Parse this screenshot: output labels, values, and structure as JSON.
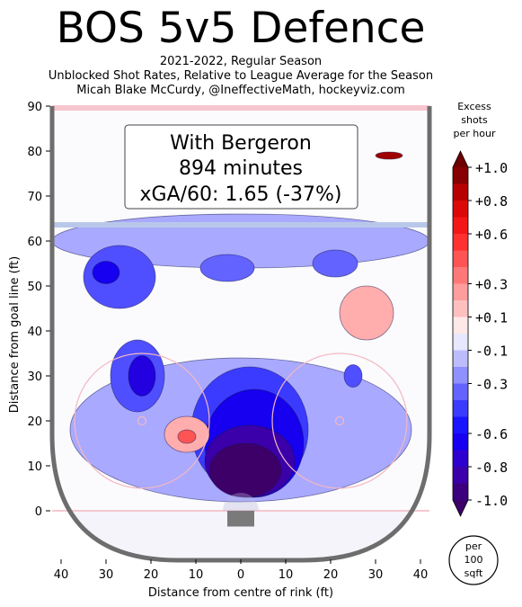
{
  "header": {
    "title": "BOS 5v5 Defence",
    "subtitle_lines": [
      "2021-2022, Regular Season",
      "Unblocked Shot Rates, Relative to League Average for the Season",
      "Micah Blake McCurdy, @IneffectiveMath, hockeyviz.com"
    ]
  },
  "chart_data": {
    "type": "heatmap",
    "title": "BOS 5v5 Defence",
    "xlabel": "Distance from centre of rink (ft)",
    "ylabel": "Distance from goal line (ft)",
    "xlim": [
      -42,
      42
    ],
    "ylim": [
      -11,
      90
    ],
    "x_ticks": [
      -40,
      -30,
      -20,
      -10,
      0,
      10,
      20,
      30,
      40
    ],
    "x_tick_labels": [
      "40",
      "30",
      "20",
      "10",
      "0",
      "10",
      "20",
      "30",
      "40"
    ],
    "y_ticks": [
      0,
      10,
      20,
      30,
      40,
      50,
      60,
      70,
      80,
      90
    ],
    "y_tick_labels": [
      "0",
      "10",
      "20",
      "30",
      "40",
      "50",
      "60",
      "70",
      "80",
      "90"
    ],
    "annotation": {
      "lines": [
        "With Bergeron",
        "894 minutes",
        "xGA/60: 1.65 (-37%)"
      ],
      "minutes": 894,
      "xga60": 1.65,
      "pct_vs_league": -37
    },
    "colorbar": {
      "title_lines": [
        "Excess",
        "shots",
        "per hour"
      ],
      "range": [
        -1.0,
        1.0
      ],
      "tick_values": [
        1.0,
        0.8,
        0.6,
        0.3,
        0.1,
        -0.1,
        -0.3,
        -0.6,
        -0.8,
        -1.0
      ],
      "tick_labels": [
        "+1.0",
        "+0.8",
        "+0.6",
        "+0.3",
        "+0.1",
        "-0.1",
        "-0.3",
        "-0.6",
        "-0.8",
        "-1.0"
      ]
    },
    "unit_badge_lines": [
      "per",
      "100",
      "sqft"
    ],
    "grid": false,
    "regions": [
      {
        "x": 0,
        "y": 60,
        "rx": 42,
        "ry": 6,
        "value": -0.2
      },
      {
        "x": 0,
        "y": 18,
        "rx": 38,
        "ry": 16,
        "value": -0.2
      },
      {
        "x": -27,
        "y": 52,
        "rx": 8,
        "ry": 7,
        "value": -0.4
      },
      {
        "x": -30,
        "y": 53,
        "rx": 3,
        "ry": 2.5,
        "value": -0.65
      },
      {
        "x": -3,
        "y": 54,
        "rx": 6,
        "ry": 3,
        "value": -0.35
      },
      {
        "x": 21,
        "y": 55,
        "rx": 5,
        "ry": 3,
        "value": -0.35
      },
      {
        "x": -23,
        "y": 30,
        "rx": 6,
        "ry": 8,
        "value": -0.4
      },
      {
        "x": -22,
        "y": 30,
        "rx": 3,
        "ry": 4.5,
        "value": -0.7
      },
      {
        "x": 25,
        "y": 30,
        "rx": 2,
        "ry": 2.5,
        "value": -0.4
      },
      {
        "x": 2,
        "y": 18,
        "rx": 13,
        "ry": 14,
        "value": -0.45
      },
      {
        "x": 3,
        "y": 15,
        "rx": 11,
        "ry": 12,
        "value": -0.65
      },
      {
        "x": 2,
        "y": 11,
        "rx": 10,
        "ry": 8,
        "value": -0.85
      },
      {
        "x": 1,
        "y": 9,
        "rx": 8,
        "ry": 6,
        "value": -1.0
      },
      {
        "x": 28,
        "y": 44,
        "rx": 6,
        "ry": 6,
        "value": 0.2
      },
      {
        "x": -12,
        "y": 17,
        "rx": 5,
        "ry": 4,
        "value": 0.2
      },
      {
        "x": -12,
        "y": 16.5,
        "rx": 2,
        "ry": 1.5,
        "value": 0.45
      },
      {
        "x": 33,
        "y": 79,
        "rx": 3,
        "ry": 0.8,
        "value": 0.9
      }
    ]
  }
}
